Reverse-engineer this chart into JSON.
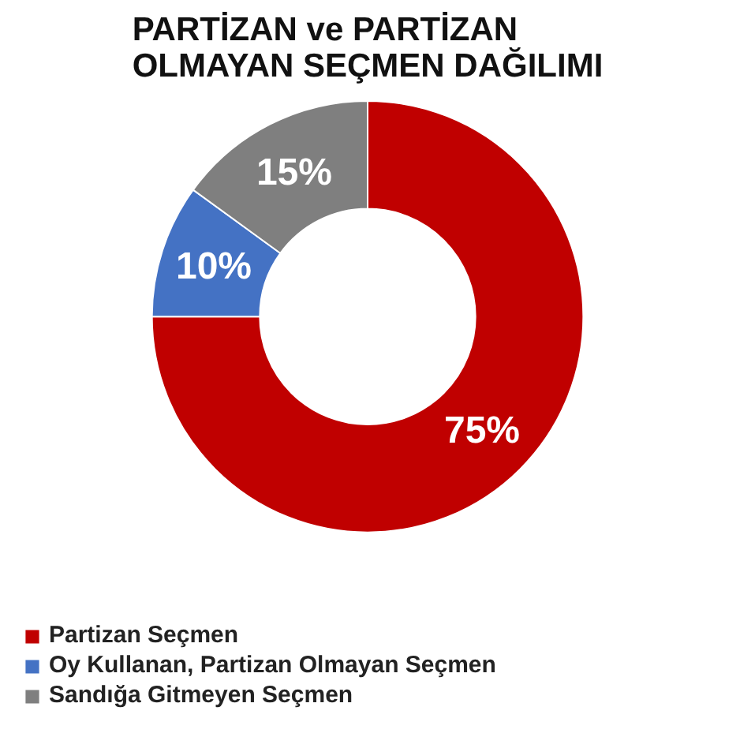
{
  "chart_data": {
    "type": "donut",
    "title": "PARTİZAN ve PARTİZAN\nOLMAYAN SEÇMEN DAĞILIMI",
    "categories": [
      "Partizan Seçmen",
      "Oy Kullanan, Partizan Olmayan Seçmen",
      "Sandığa Gitmeyen Seçmen"
    ],
    "values": [
      75,
      10,
      15
    ],
    "colors": [
      "#c00000",
      "#4472c4",
      "#7f7f7f"
    ],
    "value_labels": [
      "75%",
      "10%",
      "15%"
    ],
    "legend": "bottom left"
  }
}
